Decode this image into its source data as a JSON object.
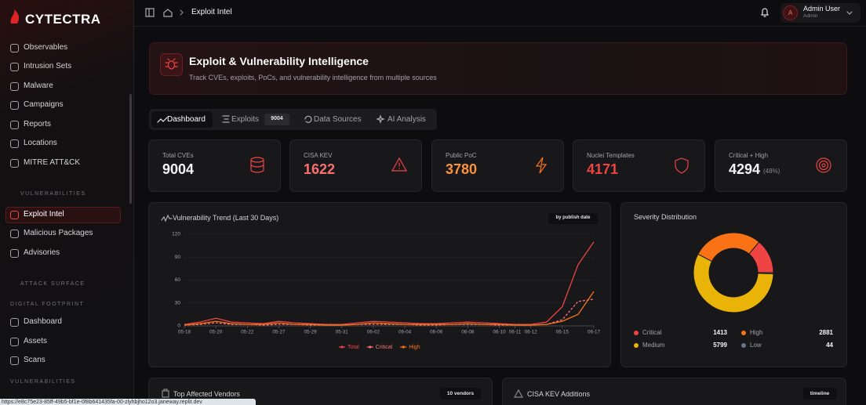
{
  "sidebar": {
    "brand": "CYTECTRA",
    "items": [
      "Observables",
      "Intrusion Sets",
      "Malware",
      "Campaigns",
      "Reports",
      "Locations",
      "MITRE ATT&CK"
    ],
    "sections": [
      {
        "title": "VULNERABILITIES",
        "items": [
          "Exploit Intel",
          "Malicious Packages",
          "Advisories"
        ]
      },
      {
        "title": "ATTACK SURFACE",
        "subtitle": "DIGITAL FOOTPRINT",
        "items": [
          "Dashboard",
          "Assets",
          "Scans"
        ]
      },
      {
        "title": "VULNERABILITIES"
      }
    ]
  },
  "topbar": {
    "breadcrumb": "Exploit Intel",
    "user": {
      "name": "Admin User",
      "role": "Admin",
      "initial": "A"
    }
  },
  "header": {
    "title": "Exploit & Vulnerability Intelligence",
    "subtitle": "Track CVEs, exploits, PoCs, and vulnerability intelligence from multiple sources"
  },
  "tabs": [
    {
      "label": "Dashboard"
    },
    {
      "label": "Exploits",
      "badge": 9004
    },
    {
      "label": "Data Sources"
    },
    {
      "label": "AI Analysis"
    }
  ],
  "stats": [
    {
      "label": "Total CVEs",
      "value": 9004
    },
    {
      "label": "CISA KEV",
      "value": 1622
    },
    {
      "label": "Public PoC",
      "value": 3780
    },
    {
      "label": "Nuclei Templates",
      "value": 4171
    },
    {
      "label": "Critical + High",
      "value": 4294,
      "note": "(48%)"
    }
  ],
  "chart_data": [
    {
      "type": "line",
      "title": "Vulnerability Trend (Last 30 Days)",
      "badge": "by publish date",
      "categories": [
        "05-18",
        null,
        "05-20",
        null,
        "05-22",
        null,
        "05-27",
        null,
        "05-29",
        null,
        "05-31",
        null,
        "06-02",
        null,
        "06-04",
        null,
        "06-06",
        null,
        "06-08",
        null,
        "06-10",
        "06-11",
        "06-12",
        null,
        "06-15",
        null,
        "06-17"
      ],
      "ylim": [
        0,
        120
      ],
      "yticks": [
        0,
        30,
        60,
        90,
        120
      ],
      "grid": true,
      "series": [
        {
          "name": "Total",
          "color": "#ef4444",
          "values": [
            2,
            5,
            10,
            5,
            4,
            3,
            6,
            4,
            3,
            2,
            2,
            4,
            6,
            5,
            4,
            3,
            3,
            4,
            5,
            4,
            3,
            2,
            2,
            5,
            25,
            80,
            110
          ]
        },
        {
          "name": "Critical",
          "color": "#f87171",
          "dashed": true,
          "values": [
            1,
            2,
            4,
            2,
            2,
            1,
            2,
            2,
            1,
            1,
            1,
            2,
            2,
            2,
            2,
            1,
            1,
            2,
            2,
            2,
            1,
            1,
            1,
            2,
            8,
            32,
            35
          ]
        },
        {
          "name": "High",
          "color": "#f97316",
          "values": [
            1,
            3,
            6,
            3,
            2,
            2,
            4,
            2,
            2,
            1,
            1,
            2,
            4,
            3,
            2,
            2,
            2,
            2,
            3,
            2,
            2,
            1,
            1,
            2,
            6,
            15,
            45
          ]
        }
      ]
    },
    {
      "type": "pie",
      "title": "Severity Distribution",
      "categories": [
        "Critical",
        "High",
        "Medium",
        "Low"
      ],
      "values": [
        1413,
        2881,
        5799,
        44
      ],
      "colors": [
        "#ef4444",
        "#f97316",
        "#eab308",
        "#64748b"
      ],
      "donut": true
    }
  ],
  "panels": [
    {
      "title": "Top Affected Vendors",
      "badge": "10 vendors"
    },
    {
      "title": "CISA KEV Additions",
      "badge": "timeline"
    }
  ],
  "status_url": "https://e8c75e23-85ff-49b5-bf1e-0f8b641435fa-00-zlyhbjho12o3.janeway.replit.dev"
}
